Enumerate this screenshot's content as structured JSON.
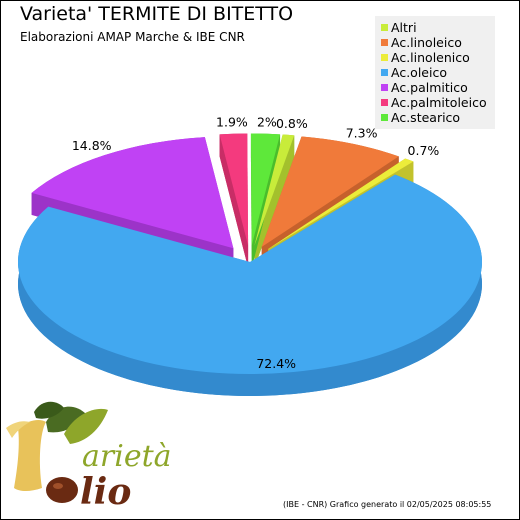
{
  "title": "Varieta' TERMITE DI BITETTO",
  "subtitle": "Elaborazioni AMAP Marche & IBE CNR",
  "footer": "(IBE - CNR) Grafico generato il 02/05/2025 08:05:55",
  "logo": {
    "line1": "arietà",
    "line2": "lio"
  },
  "chart_data": {
    "type": "pie",
    "title": "Varieta' TERMITE DI BITETTO",
    "subtitle": "Elaborazioni AMAP Marche & IBE CNR",
    "legend_position": "top-right",
    "slices": [
      {
        "name": "Altri",
        "value": 0.8,
        "label": "0.8%",
        "color": "#c8ec3a",
        "side": "#a3c12c"
      },
      {
        "name": "Ac.linoleico",
        "value": 7.3,
        "label": "7.3%",
        "color": "#f07a3a",
        "side": "#c6612c"
      },
      {
        "name": "Ac.linolenico",
        "value": 0.7,
        "label": "0.7%",
        "color": "#ecec3a",
        "side": "#c2c22c"
      },
      {
        "name": "Ac.oleico",
        "value": 72.4,
        "label": "72.4%",
        "color": "#42a8f0",
        "side": "#338ace"
      },
      {
        "name": "Ac.palmitico",
        "value": 14.8,
        "label": "14.8%",
        "color": "#c042f4",
        "side": "#9c33c8"
      },
      {
        "name": "Ac.palmitoleico",
        "value": 1.9,
        "label": "1.9%",
        "color": "#f43a7e",
        "side": "#c82d66"
      },
      {
        "name": "Ac.stearico",
        "value": 2.0,
        "label": "2%",
        "color": "#5ee83a",
        "side": "#4abd2c"
      }
    ]
  }
}
